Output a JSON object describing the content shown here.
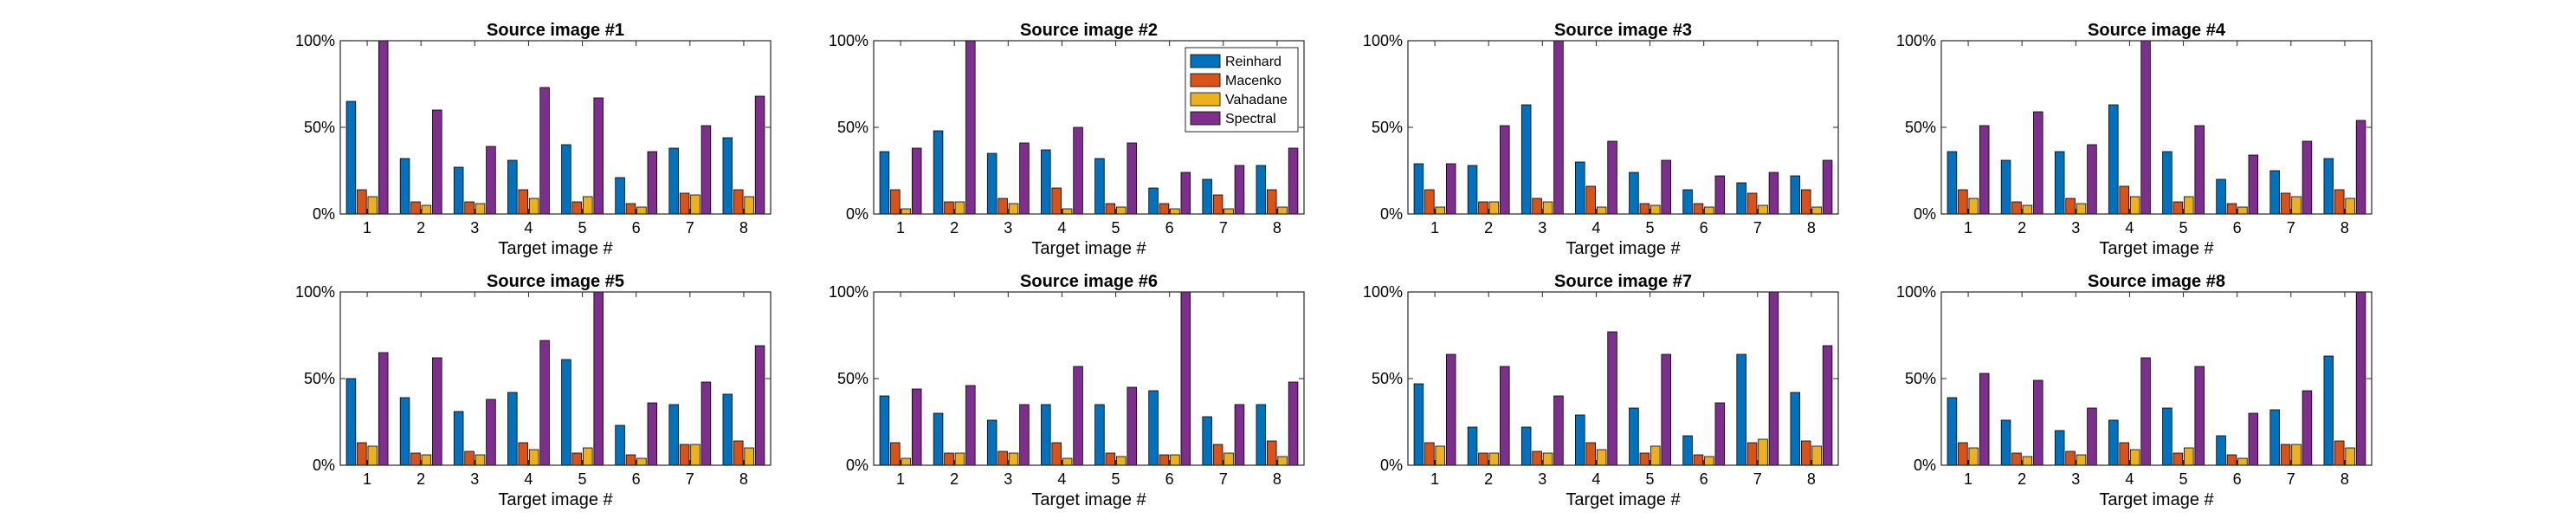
{
  "figure": {
    "background": "#ffffff"
  },
  "legend": {
    "entries": [
      {
        "name": "Reinhard",
        "color": "#0072BD"
      },
      {
        "name": "Macenko",
        "color": "#D95319"
      },
      {
        "name": "Vahadane",
        "color": "#EDB120"
      },
      {
        "name": "Spectral",
        "color": "#7E2F8E"
      }
    ],
    "placement": "inside top-right of subplot 2"
  },
  "chart_data": [
    {
      "type": "bar",
      "title": "Source image #1",
      "xlabel": "Target image #",
      "categories": [
        "1",
        "2",
        "3",
        "4",
        "5",
        "6",
        "7",
        "8"
      ],
      "yticks": [
        "0%",
        "50%",
        "100%"
      ],
      "ylim": [
        0,
        100
      ],
      "series": [
        {
          "name": "Reinhard",
          "values": [
            65,
            32,
            27,
            31,
            40,
            21,
            38,
            44
          ]
        },
        {
          "name": "Macenko",
          "values": [
            14,
            7,
            7,
            14,
            7,
            6,
            12,
            14
          ]
        },
        {
          "name": "Vahadane",
          "values": [
            10,
            5,
            6,
            9,
            10,
            4,
            11,
            10
          ]
        },
        {
          "name": "Spectral",
          "values": [
            100,
            60,
            39,
            73,
            67,
            36,
            51,
            68
          ]
        }
      ]
    },
    {
      "type": "bar",
      "title": "Source image #2",
      "xlabel": "Target image #",
      "categories": [
        "1",
        "2",
        "3",
        "4",
        "5",
        "6",
        "7",
        "8"
      ],
      "yticks": [
        "0%",
        "50%",
        "100%"
      ],
      "ylim": [
        0,
        100
      ],
      "series": [
        {
          "name": "Reinhard",
          "values": [
            36,
            48,
            35,
            37,
            32,
            15,
            20,
            28
          ]
        },
        {
          "name": "Macenko",
          "values": [
            14,
            7,
            9,
            15,
            6,
            6,
            11,
            14
          ]
        },
        {
          "name": "Vahadane",
          "values": [
            3,
            7,
            6,
            3,
            4,
            3,
            3,
            4
          ]
        },
        {
          "name": "Spectral",
          "values": [
            38,
            100,
            41,
            50,
            41,
            24,
            28,
            38
          ]
        }
      ]
    },
    {
      "type": "bar",
      "title": "Source image #3",
      "xlabel": "Target image #",
      "categories": [
        "1",
        "2",
        "3",
        "4",
        "5",
        "6",
        "7",
        "8"
      ],
      "yticks": [
        "0%",
        "50%",
        "100%"
      ],
      "ylim": [
        0,
        100
      ],
      "series": [
        {
          "name": "Reinhard",
          "values": [
            29,
            28,
            63,
            30,
            24,
            14,
            18,
            22
          ]
        },
        {
          "name": "Macenko",
          "values": [
            14,
            7,
            9,
            16,
            6,
            6,
            12,
            14
          ]
        },
        {
          "name": "Vahadane",
          "values": [
            4,
            7,
            7,
            4,
            5,
            4,
            5,
            4
          ]
        },
        {
          "name": "Spectral",
          "values": [
            29,
            51,
            100,
            42,
            31,
            22,
            24,
            31
          ]
        }
      ]
    },
    {
      "type": "bar",
      "title": "Source image #4",
      "xlabel": "Target image #",
      "categories": [
        "1",
        "2",
        "3",
        "4",
        "5",
        "6",
        "7",
        "8"
      ],
      "yticks": [
        "0%",
        "50%",
        "100%"
      ],
      "ylim": [
        0,
        100
      ],
      "series": [
        {
          "name": "Reinhard",
          "values": [
            36,
            31,
            36,
            63,
            36,
            20,
            25,
            32
          ]
        },
        {
          "name": "Macenko",
          "values": [
            14,
            7,
            9,
            16,
            7,
            6,
            12,
            14
          ]
        },
        {
          "name": "Vahadane",
          "values": [
            9,
            5,
            6,
            10,
            10,
            4,
            10,
            9
          ]
        },
        {
          "name": "Spectral",
          "values": [
            51,
            59,
            40,
            100,
            51,
            34,
            42,
            54
          ]
        }
      ]
    },
    {
      "type": "bar",
      "title": "Source image #5",
      "xlabel": "Target image #",
      "categories": [
        "1",
        "2",
        "3",
        "4",
        "5",
        "6",
        "7",
        "8"
      ],
      "yticks": [
        "0%",
        "50%",
        "100%"
      ],
      "ylim": [
        0,
        100
      ],
      "series": [
        {
          "name": "Reinhard",
          "values": [
            50,
            39,
            31,
            42,
            61,
            23,
            35,
            41
          ]
        },
        {
          "name": "Macenko",
          "values": [
            13,
            7,
            8,
            13,
            7,
            6,
            12,
            14
          ]
        },
        {
          "name": "Vahadane",
          "values": [
            11,
            6,
            6,
            9,
            10,
            4,
            12,
            10
          ]
        },
        {
          "name": "Spectral",
          "values": [
            65,
            62,
            38,
            72,
            100,
            36,
            48,
            69
          ]
        }
      ]
    },
    {
      "type": "bar",
      "title": "Source image #6",
      "xlabel": "Target image #",
      "categories": [
        "1",
        "2",
        "3",
        "4",
        "5",
        "6",
        "7",
        "8"
      ],
      "yticks": [
        "0%",
        "50%",
        "100%"
      ],
      "ylim": [
        0,
        100
      ],
      "series": [
        {
          "name": "Reinhard",
          "values": [
            40,
            30,
            26,
            35,
            35,
            43,
            28,
            35
          ]
        },
        {
          "name": "Macenko",
          "values": [
            13,
            7,
            8,
            13,
            7,
            6,
            12,
            14
          ]
        },
        {
          "name": "Vahadane",
          "values": [
            4,
            7,
            7,
            4,
            5,
            6,
            7,
            5
          ]
        },
        {
          "name": "Spectral",
          "values": [
            44,
            46,
            35,
            57,
            45,
            100,
            35,
            48
          ]
        }
      ]
    },
    {
      "type": "bar",
      "title": "Source image #7",
      "xlabel": "Target image #",
      "categories": [
        "1",
        "2",
        "3",
        "4",
        "5",
        "6",
        "7",
        "8"
      ],
      "yticks": [
        "0%",
        "50%",
        "100%"
      ],
      "ylim": [
        0,
        100
      ],
      "series": [
        {
          "name": "Reinhard",
          "values": [
            47,
            22,
            22,
            29,
            33,
            17,
            64,
            42
          ]
        },
        {
          "name": "Macenko",
          "values": [
            13,
            7,
            8,
            13,
            7,
            6,
            13,
            14
          ]
        },
        {
          "name": "Vahadane",
          "values": [
            11,
            7,
            7,
            9,
            11,
            5,
            15,
            11
          ]
        },
        {
          "name": "Spectral",
          "values": [
            64,
            57,
            40,
            77,
            64,
            36,
            100,
            69
          ]
        }
      ]
    },
    {
      "type": "bar",
      "title": "Source image #8",
      "xlabel": "Target image #",
      "categories": [
        "1",
        "2",
        "3",
        "4",
        "5",
        "6",
        "7",
        "8"
      ],
      "yticks": [
        "0%",
        "50%",
        "100%"
      ],
      "ylim": [
        0,
        100
      ],
      "series": [
        {
          "name": "Reinhard",
          "values": [
            39,
            26,
            20,
            26,
            33,
            17,
            32,
            63
          ]
        },
        {
          "name": "Macenko",
          "values": [
            13,
            7,
            8,
            13,
            7,
            6,
            12,
            14
          ]
        },
        {
          "name": "Vahadane",
          "values": [
            10,
            5,
            6,
            9,
            10,
            4,
            12,
            10
          ]
        },
        {
          "name": "Spectral",
          "values": [
            53,
            49,
            33,
            62,
            57,
            30,
            43,
            100
          ]
        }
      ]
    }
  ]
}
